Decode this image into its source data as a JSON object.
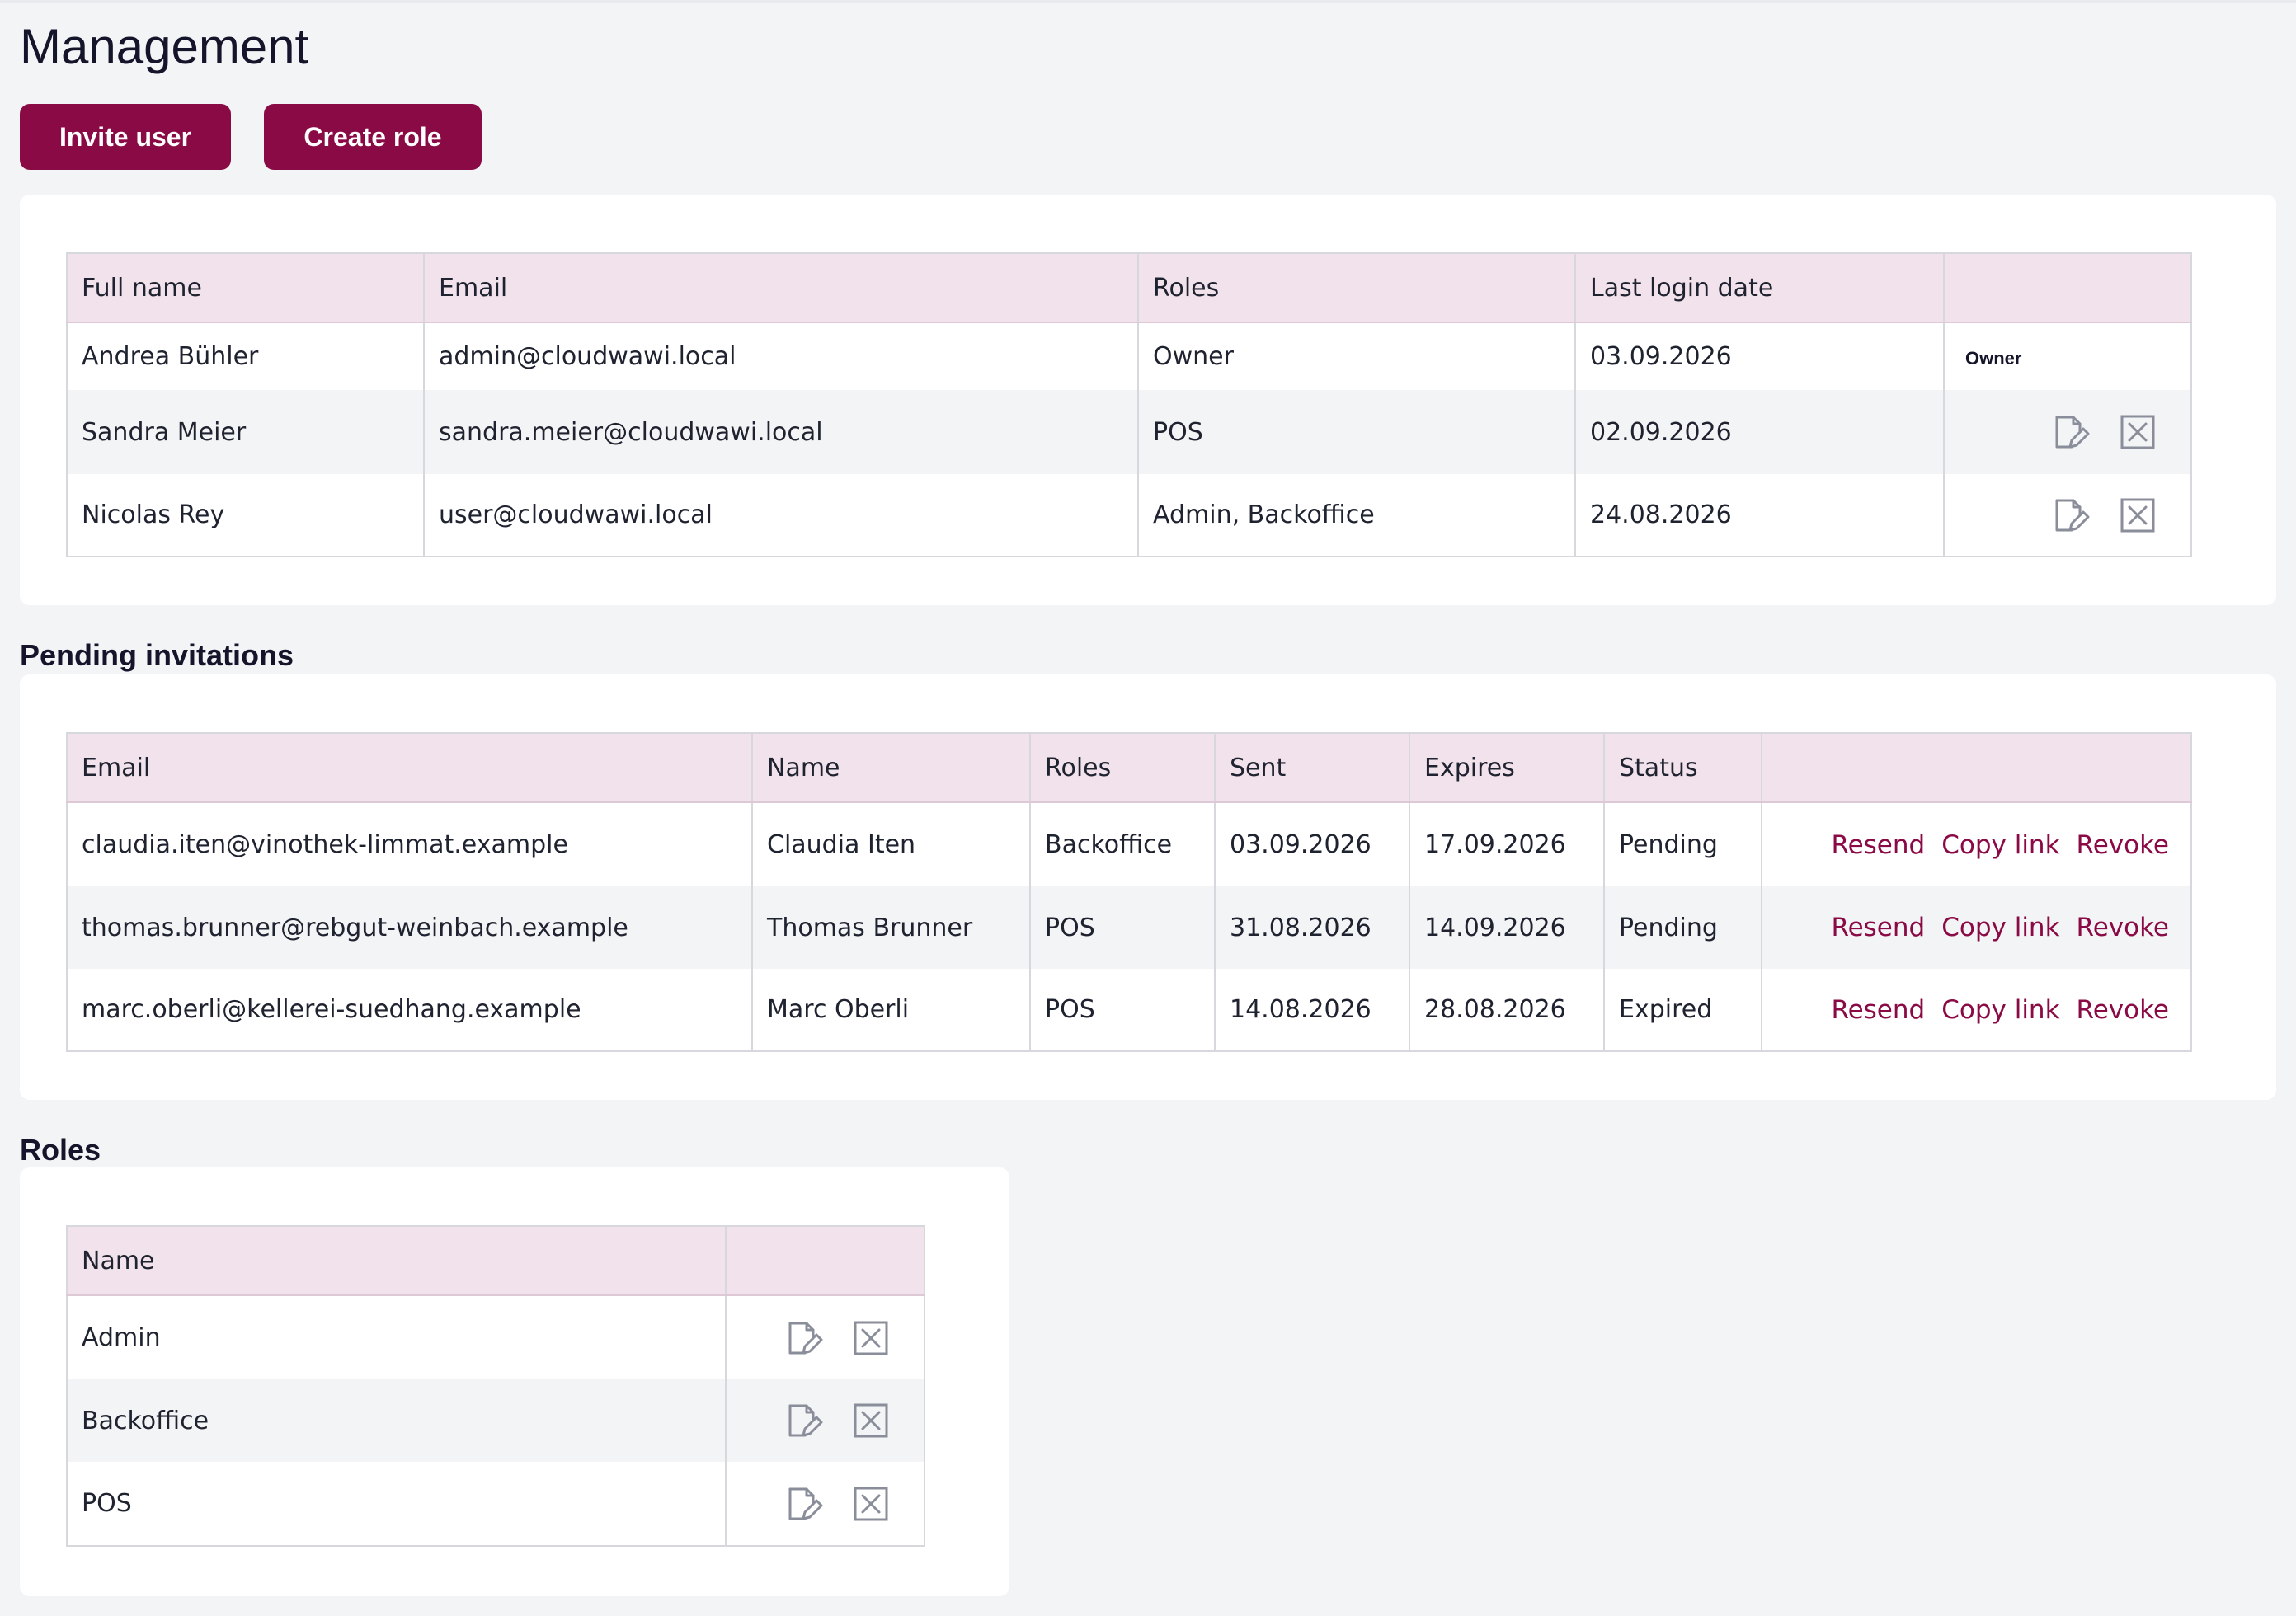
{
  "page": {
    "title": "Management"
  },
  "actions": {
    "invite_label": "Invite user",
    "create_role_label": "Create role"
  },
  "users": {
    "headers": {
      "name": "Full name",
      "email": "Email",
      "roles": "Roles",
      "last_login": "Last login date"
    },
    "rows": [
      {
        "name": "Andrea Bühler",
        "email": "admin@cloudwawi.local",
        "roles": "Owner",
        "last_login": "03.09.2026",
        "badge": "Owner"
      },
      {
        "name": "Sandra Meier",
        "email": "sandra.meier@cloudwawi.local",
        "roles": "POS",
        "last_login": "02.09.2026"
      },
      {
        "name": "Nicolas Rey",
        "email": "user@cloudwawi.local",
        "roles": "Admin, Backoffice",
        "last_login": "24.08.2026"
      }
    ]
  },
  "invitations": {
    "title": "Pending invitations",
    "headers": {
      "email": "Email",
      "name": "Name",
      "roles": "Roles",
      "sent": "Sent",
      "expires": "Expires",
      "status": "Status"
    },
    "actions": {
      "resend": "Resend",
      "copy": "Copy link",
      "revoke": "Revoke"
    },
    "rows": [
      {
        "email": "claudia.iten@vinothek-limmat.example",
        "name": "Claudia Iten",
        "roles": "Backoffice",
        "sent": "03.09.2026",
        "expires": "17.09.2026",
        "status": "Pending"
      },
      {
        "email": "thomas.brunner@rebgut-weinbach.example",
        "name": "Thomas Brunner",
        "roles": "POS",
        "sent": "31.08.2026",
        "expires": "14.09.2026",
        "status": "Pending"
      },
      {
        "email": "marc.oberli@kellerei-suedhang.example",
        "name": "Marc Oberli",
        "roles": "POS",
        "sent": "14.08.2026",
        "expires": "28.08.2026",
        "status": "Expired"
      }
    ]
  },
  "roles": {
    "title": "Roles",
    "headers": {
      "name": "Name"
    },
    "rows": [
      {
        "name": "Admin"
      },
      {
        "name": "Backoffice"
      },
      {
        "name": "POS"
      }
    ]
  },
  "icons": {
    "edit": "edit-icon",
    "delete": "delete-icon"
  },
  "colors": {
    "accent": "#8a0a45",
    "header_bg": "#f2e2ec",
    "page_bg": "#f3f4f6"
  }
}
